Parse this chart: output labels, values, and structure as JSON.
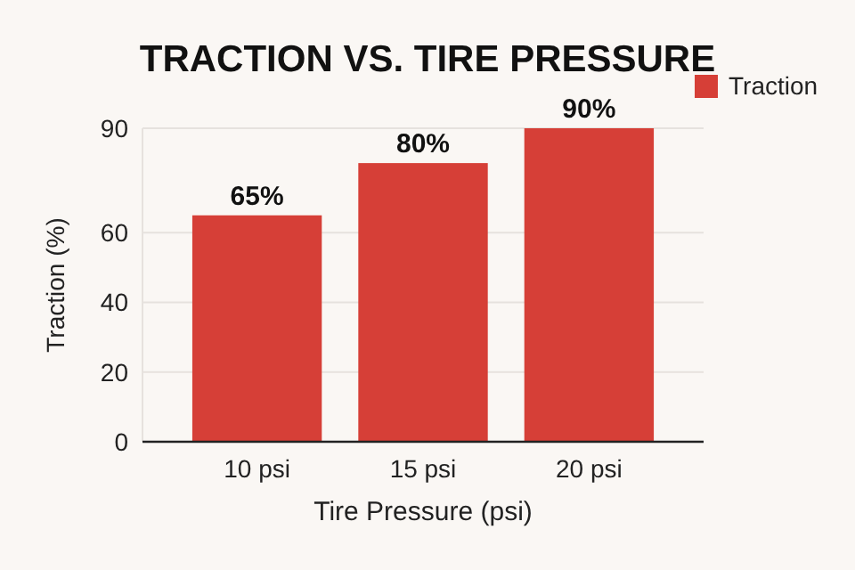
{
  "chart_data": {
    "type": "bar",
    "title": "TRACTION VS. TIRE PRESSURE",
    "xlabel": "Tire Pressure (psi)",
    "ylabel": "Traction (%)",
    "categories": [
      "10 psi",
      "15 psi",
      "20 psi"
    ],
    "series": [
      {
        "name": "Traction",
        "color": "#d63f37",
        "values": [
          65,
          80,
          90
        ],
        "value_labels": [
          "65%",
          "80%",
          "90%"
        ]
      }
    ],
    "ylim": [
      0,
      90
    ],
    "yticks": [
      0,
      20,
      40,
      60,
      90
    ],
    "grid": "y",
    "legend": "top right"
  }
}
